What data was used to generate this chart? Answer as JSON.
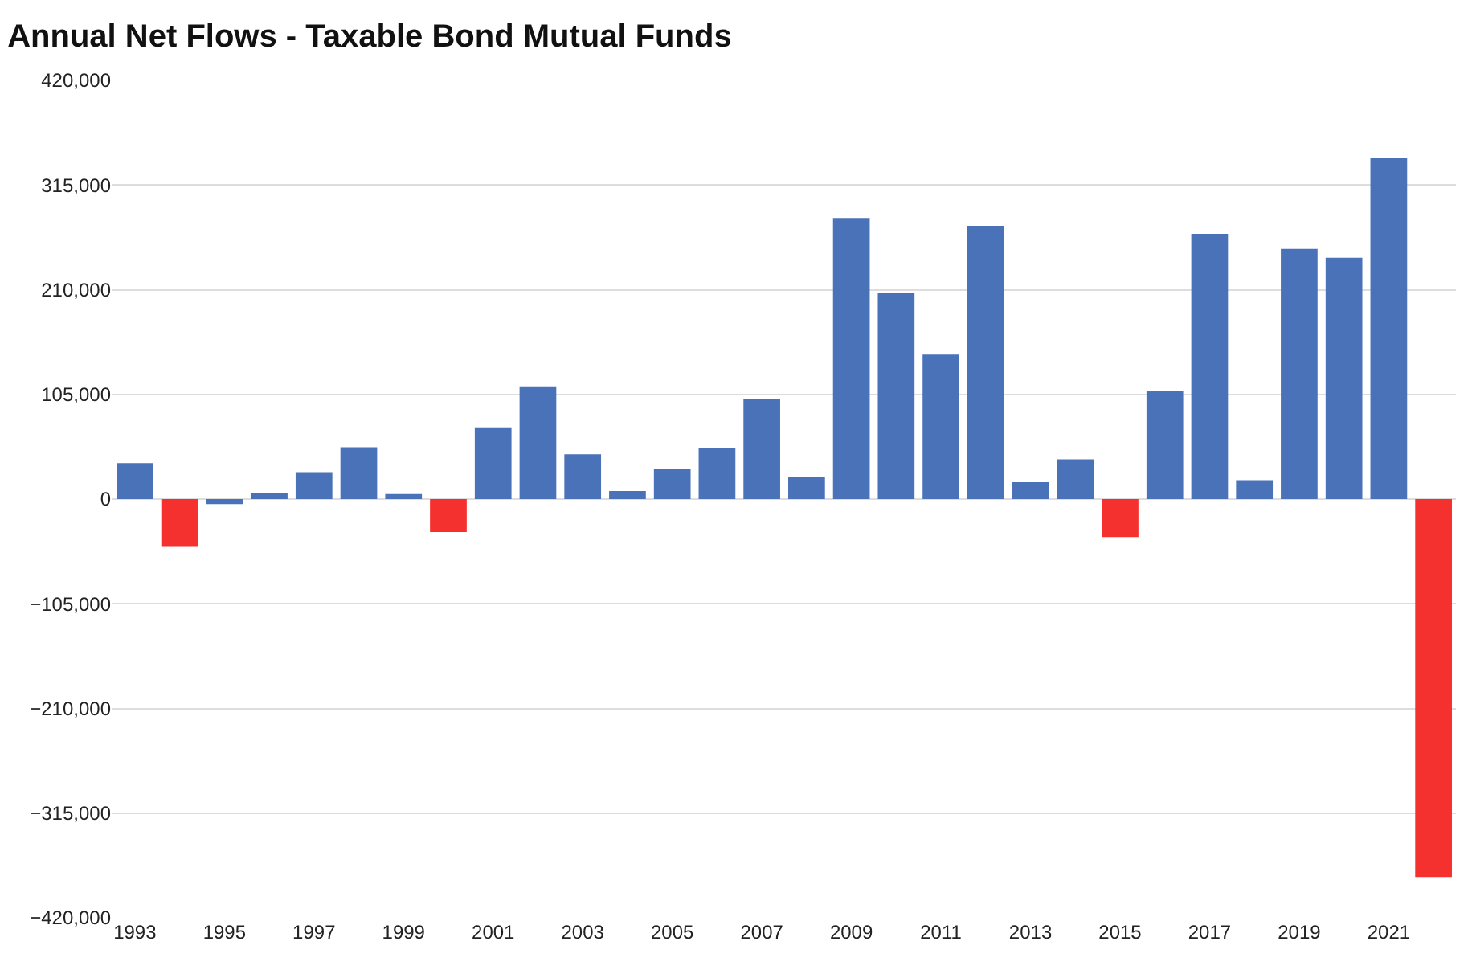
{
  "chart_data": {
    "type": "bar",
    "title": "Annual Net Flows - Taxable Bond Mutual Funds",
    "categories": [
      "1993",
      null,
      "1995",
      null,
      "1997",
      null,
      "1999",
      null,
      "2001",
      null,
      "2003",
      null,
      "2005",
      null,
      "2007",
      null,
      "2009",
      null,
      "2011",
      null,
      "2013",
      null,
      "2015",
      null,
      "2017",
      null,
      "2019",
      null,
      "2021",
      null
    ],
    "values": [
      36000,
      -48000,
      -5000,
      6000,
      27000,
      52000,
      5000,
      -33000,
      72000,
      113000,
      45000,
      8000,
      30000,
      51000,
      100000,
      22000,
      282000,
      207000,
      145000,
      274000,
      17000,
      40000,
      -38000,
      108000,
      266000,
      19000,
      251000,
      242000,
      342000,
      -379000
    ],
    "colors": [
      "#4a72b8",
      "#f5312f",
      "#4a72b8",
      "#4a72b8",
      "#4a72b8",
      "#4a72b8",
      "#4a72b8",
      "#f5312f",
      "#4a72b8",
      "#4a72b8",
      "#4a72b8",
      "#4a72b8",
      "#4a72b8",
      "#4a72b8",
      "#4a72b8",
      "#4a72b8",
      "#4a72b8",
      "#4a72b8",
      "#4a72b8",
      "#4a72b8",
      "#4a72b8",
      "#4a72b8",
      "#f5312f",
      "#4a72b8",
      "#4a72b8",
      "#4a72b8",
      "#4a72b8",
      "#4a72b8",
      "#4a72b8",
      "#f5312f"
    ],
    "ylim": [
      -420000,
      420000
    ],
    "yticks": [
      {
        "value": -420000,
        "label": "−420,000"
      },
      {
        "value": -315000,
        "label": "−315,000"
      },
      {
        "value": -210000,
        "label": "−210,000"
      },
      {
        "value": -105000,
        "label": "−105,000"
      },
      0,
      {
        "value": 105000,
        "label": "105,000"
      },
      {
        "value": 210000,
        "label": "210,000"
      },
      {
        "value": 315000,
        "label": "315,000"
      },
      {
        "value": 420000,
        "label": "420,000"
      }
    ],
    "grid": "y"
  }
}
